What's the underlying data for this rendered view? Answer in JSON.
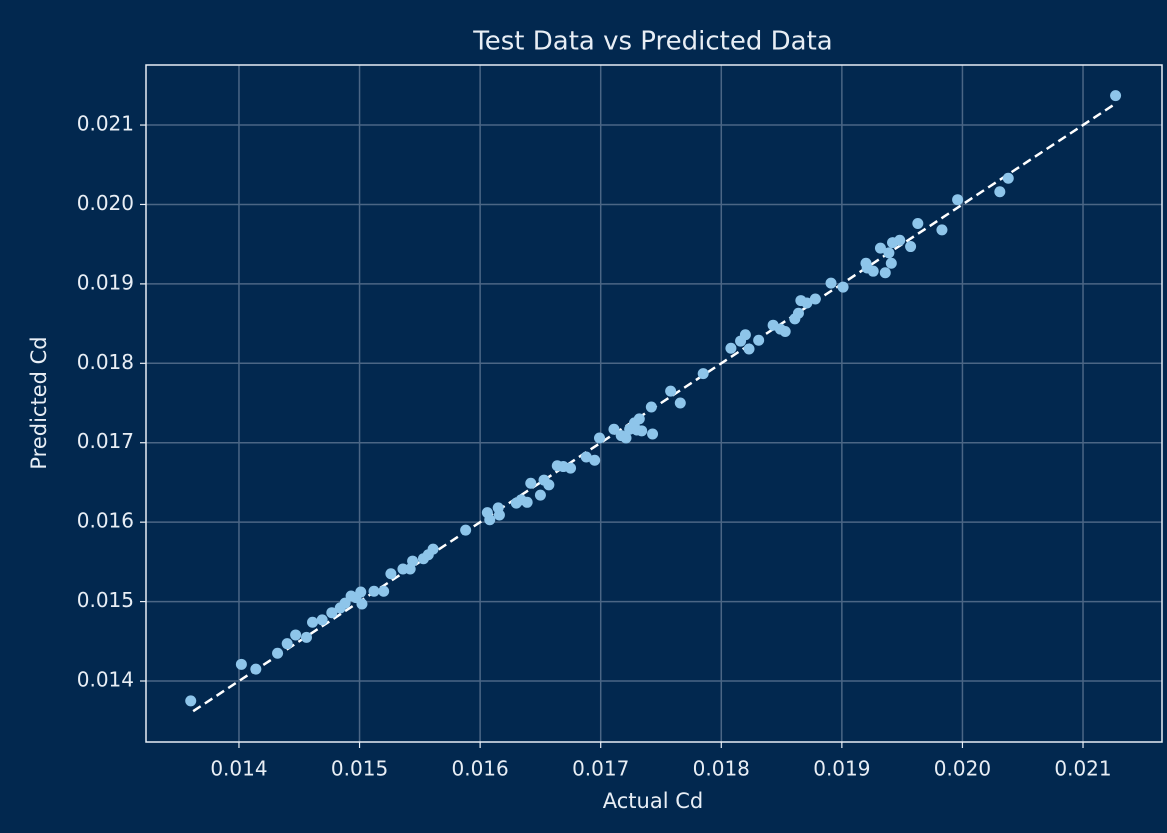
{
  "chart_data": {
    "type": "scatter",
    "title": "Test Data vs Predicted Data",
    "xlabel": "Actual Cd",
    "ylabel": "Predicted Cd",
    "color": "#8ec5ea",
    "grid": true,
    "xlim": [
      0.013229,
      0.021655
    ],
    "ylim": [
      0.013232,
      0.021756
    ],
    "xticks": [
      0.014,
      0.015,
      0.016,
      0.017,
      0.018,
      0.019,
      {
        "value": 0.02,
        "label": "0.020"
      },
      0.021
    ],
    "yticks": [
      0.014,
      0.015,
      0.016,
      0.017,
      0.018,
      0.019,
      {
        "value": 0.02,
        "label": "0.020"
      },
      0.021
    ],
    "x": [
      0.0136,
      0.01402,
      0.01414,
      0.01432,
      0.0144,
      0.01447,
      0.01456,
      0.01461,
      0.01469,
      0.01477,
      0.01484,
      0.01488,
      0.01493,
      0.01497,
      0.01501,
      0.01502,
      0.01512,
      0.0152,
      0.01526,
      0.01536,
      0.01542,
      0.01544,
      0.01553,
      0.01557,
      0.01561,
      0.01588,
      0.01606,
      0.01608,
      0.01615,
      0.01616,
      0.0163,
      0.01634,
      0.01639,
      0.01642,
      0.0165,
      0.01653,
      0.01657,
      0.01664,
      0.01669,
      0.01675,
      0.01688,
      0.01695,
      0.01699,
      0.01711,
      0.01717,
      0.01721,
      0.01724,
      0.01728,
      0.0173,
      0.01732,
      0.01734,
      0.01742,
      0.01743,
      0.01758,
      0.01766,
      0.01785,
      0.01808,
      0.01816,
      0.0182,
      0.01823,
      0.01831,
      0.01843,
      0.01849,
      0.01853,
      0.01861,
      0.01864,
      0.01866,
      0.01871,
      0.01878,
      0.01891,
      0.01901,
      0.0192,
      0.01921,
      0.01926,
      0.01932,
      0.01936,
      0.01939,
      0.01941,
      0.01942,
      0.01948,
      0.01957,
      0.01963,
      0.01983,
      0.01996,
      0.02031,
      0.02038,
      0.02127
    ],
    "values": [
      0.01375,
      0.01421,
      0.01415,
      0.01435,
      0.01447,
      0.01458,
      0.01455,
      0.01474,
      0.01477,
      0.01486,
      0.01492,
      0.01498,
      0.01507,
      0.01505,
      0.01512,
      0.01497,
      0.01513,
      0.01513,
      0.01535,
      0.01541,
      0.01541,
      0.01551,
      0.01554,
      0.01559,
      0.01566,
      0.0159,
      0.01612,
      0.01603,
      0.01618,
      0.01609,
      0.01624,
      0.01628,
      0.01625,
      0.01649,
      0.01634,
      0.01653,
      0.01647,
      0.01671,
      0.0167,
      0.01668,
      0.01682,
      0.01678,
      0.01706,
      0.01717,
      0.01709,
      0.01706,
      0.01717,
      0.01725,
      0.01716,
      0.0173,
      0.01715,
      0.01745,
      0.01711,
      0.01765,
      0.0175,
      0.01787,
      0.01819,
      0.01828,
      0.01836,
      0.01818,
      0.01829,
      0.01848,
      0.01843,
      0.0184,
      0.01856,
      0.01863,
      0.01879,
      0.01876,
      0.01881,
      0.01901,
      0.01896,
      0.01926,
      0.0192,
      0.01916,
      0.01945,
      0.01914,
      0.01939,
      0.01926,
      0.01952,
      0.01955,
      0.01947,
      0.01976,
      0.01968,
      0.02006,
      0.02016,
      0.02033,
      0.02137
    ],
    "reference_line": {
      "x": [
        0.01362,
        0.02126
      ],
      "values": [
        0.01362,
        0.02126
      ],
      "color": "#ffffff",
      "dashed": true
    }
  }
}
